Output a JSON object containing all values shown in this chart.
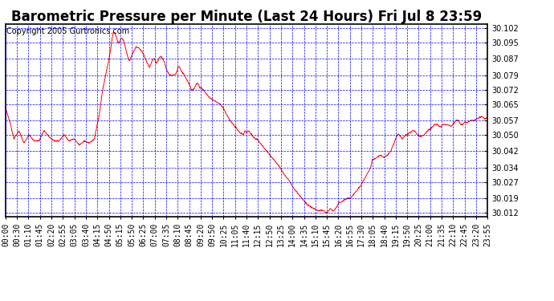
{
  "title": "Barometric Pressure per Minute (Last 24 Hours) Fri Jul 8 23:59",
  "copyright": "Copyright 2005 Gurtronics.com",
  "line_color": "red",
  "background_color": "white",
  "grid_color": "blue",
  "yticks": [
    30.012,
    30.019,
    30.027,
    30.034,
    30.042,
    30.05,
    30.057,
    30.065,
    30.072,
    30.079,
    30.087,
    30.095,
    30.102
  ],
  "ylim": [
    30.01,
    30.104
  ],
  "xtick_labels": [
    "00:00",
    "00:30",
    "01:10",
    "01:45",
    "02:20",
    "02:55",
    "03:05",
    "03:40",
    "04:15",
    "04:50",
    "05:15",
    "05:50",
    "06:25",
    "07:00",
    "07:35",
    "08:10",
    "08:45",
    "09:20",
    "09:50",
    "10:25",
    "11:05",
    "11:40",
    "12:15",
    "12:50",
    "13:25",
    "14:00",
    "14:35",
    "15:10",
    "15:45",
    "16:20",
    "16:55",
    "17:30",
    "18:05",
    "18:40",
    "19:15",
    "19:50",
    "20:25",
    "21:00",
    "21:35",
    "22:10",
    "22:45",
    "23:20",
    "23:55"
  ],
  "waypoints": [
    [
      0,
      30.063
    ],
    [
      15,
      30.055
    ],
    [
      25,
      30.048
    ],
    [
      40,
      30.052
    ],
    [
      55,
      30.046
    ],
    [
      70,
      30.05
    ],
    [
      85,
      30.047
    ],
    [
      100,
      30.047
    ],
    [
      115,
      30.052
    ],
    [
      130,
      30.049
    ],
    [
      145,
      30.047
    ],
    [
      160,
      30.047
    ],
    [
      175,
      30.05
    ],
    [
      190,
      30.047
    ],
    [
      205,
      30.048
    ],
    [
      220,
      30.045
    ],
    [
      235,
      30.047
    ],
    [
      250,
      30.046
    ],
    [
      265,
      30.048
    ],
    [
      280,
      30.06
    ],
    [
      290,
      30.072
    ],
    [
      300,
      30.08
    ],
    [
      310,
      30.088
    ],
    [
      315,
      30.093
    ],
    [
      318,
      30.097
    ],
    [
      322,
      30.1
    ],
    [
      325,
      30.1
    ],
    [
      328,
      30.099
    ],
    [
      332,
      30.097
    ],
    [
      336,
      30.095
    ],
    [
      340,
      30.095
    ],
    [
      344,
      30.097
    ],
    [
      348,
      30.097
    ],
    [
      352,
      30.096
    ],
    [
      356,
      30.094
    ],
    [
      360,
      30.091
    ],
    [
      365,
      30.088
    ],
    [
      370,
      30.086
    ],
    [
      380,
      30.09
    ],
    [
      390,
      30.093
    ],
    [
      400,
      30.092
    ],
    [
      410,
      30.09
    ],
    [
      420,
      30.086
    ],
    [
      430,
      30.083
    ],
    [
      435,
      30.085
    ],
    [
      440,
      30.087
    ],
    [
      445,
      30.087
    ],
    [
      450,
      30.085
    ],
    [
      455,
      30.086
    ],
    [
      460,
      30.088
    ],
    [
      465,
      30.088
    ],
    [
      470,
      30.087
    ],
    [
      475,
      30.085
    ],
    [
      480,
      30.082
    ],
    [
      490,
      30.079
    ],
    [
      500,
      30.079
    ],
    [
      510,
      30.08
    ],
    [
      515,
      30.083
    ],
    [
      520,
      30.083
    ],
    [
      525,
      30.081
    ],
    [
      530,
      30.08
    ],
    [
      535,
      30.079
    ],
    [
      540,
      30.077
    ],
    [
      545,
      30.076
    ],
    [
      550,
      30.074
    ],
    [
      555,
      30.072
    ],
    [
      560,
      30.072
    ],
    [
      565,
      30.073
    ],
    [
      570,
      30.075
    ],
    [
      575,
      30.075
    ],
    [
      580,
      30.073
    ],
    [
      585,
      30.073
    ],
    [
      590,
      30.072
    ],
    [
      600,
      30.07
    ],
    [
      610,
      30.068
    ],
    [
      620,
      30.067
    ],
    [
      630,
      30.066
    ],
    [
      640,
      30.065
    ],
    [
      650,
      30.063
    ],
    [
      660,
      30.06
    ],
    [
      670,
      30.057
    ],
    [
      680,
      30.055
    ],
    [
      690,
      30.053
    ],
    [
      700,
      30.051
    ],
    [
      710,
      30.05
    ],
    [
      715,
      30.052
    ],
    [
      720,
      30.051
    ],
    [
      725,
      30.052
    ],
    [
      730,
      30.051
    ],
    [
      735,
      30.05
    ],
    [
      740,
      30.049
    ],
    [
      745,
      30.048
    ],
    [
      750,
      30.048
    ],
    [
      760,
      30.046
    ],
    [
      770,
      30.044
    ],
    [
      780,
      30.042
    ],
    [
      790,
      30.04
    ],
    [
      800,
      30.038
    ],
    [
      810,
      30.036
    ],
    [
      820,
      30.034
    ],
    [
      830,
      30.031
    ],
    [
      840,
      30.029
    ],
    [
      850,
      30.027
    ],
    [
      860,
      30.024
    ],
    [
      870,
      30.022
    ],
    [
      880,
      30.02
    ],
    [
      890,
      30.018
    ],
    [
      900,
      30.016
    ],
    [
      910,
      30.015
    ],
    [
      920,
      30.014
    ],
    [
      930,
      30.013
    ],
    [
      940,
      30.013
    ],
    [
      950,
      30.013
    ],
    [
      955,
      30.012
    ],
    [
      960,
      30.012
    ],
    [
      965,
      30.013
    ],
    [
      970,
      30.014
    ],
    [
      975,
      30.013
    ],
    [
      980,
      30.013
    ],
    [
      985,
      30.014
    ],
    [
      990,
      30.015
    ],
    [
      995,
      30.017
    ],
    [
      1000,
      30.017
    ],
    [
      1010,
      30.018
    ],
    [
      1020,
      30.019
    ],
    [
      1030,
      30.019
    ],
    [
      1040,
      30.021
    ],
    [
      1050,
      30.023
    ],
    [
      1060,
      30.025
    ],
    [
      1070,
      30.028
    ],
    [
      1080,
      30.031
    ],
    [
      1090,
      30.034
    ],
    [
      1095,
      30.038
    ],
    [
      1100,
      30.038
    ],
    [
      1110,
      30.039
    ],
    [
      1120,
      30.04
    ],
    [
      1130,
      30.039
    ],
    [
      1140,
      30.04
    ],
    [
      1150,
      30.042
    ],
    [
      1155,
      30.044
    ],
    [
      1160,
      30.046
    ],
    [
      1165,
      30.048
    ],
    [
      1170,
      30.05
    ],
    [
      1175,
      30.05
    ],
    [
      1180,
      30.049
    ],
    [
      1185,
      30.048
    ],
    [
      1190,
      30.049
    ],
    [
      1195,
      30.05
    ],
    [
      1200,
      30.05
    ],
    [
      1205,
      30.051
    ],
    [
      1210,
      30.051
    ],
    [
      1215,
      30.052
    ],
    [
      1220,
      30.052
    ],
    [
      1225,
      30.051
    ],
    [
      1230,
      30.05
    ],
    [
      1240,
      30.049
    ],
    [
      1250,
      30.05
    ],
    [
      1260,
      30.052
    ],
    [
      1270,
      30.053
    ],
    [
      1280,
      30.055
    ],
    [
      1290,
      30.055
    ],
    [
      1295,
      30.054
    ],
    [
      1300,
      30.054
    ],
    [
      1305,
      30.055
    ],
    [
      1310,
      30.055
    ],
    [
      1320,
      30.055
    ],
    [
      1330,
      30.054
    ],
    [
      1335,
      30.055
    ],
    [
      1340,
      30.056
    ],
    [
      1345,
      30.057
    ],
    [
      1350,
      30.057
    ],
    [
      1355,
      30.056
    ],
    [
      1360,
      30.055
    ],
    [
      1365,
      30.055
    ],
    [
      1370,
      30.056
    ],
    [
      1380,
      30.056
    ],
    [
      1390,
      30.057
    ],
    [
      1400,
      30.057
    ],
    [
      1410,
      30.058
    ],
    [
      1420,
      30.059
    ],
    [
      1430,
      30.058
    ],
    [
      1439,
      30.058
    ]
  ],
  "title_fontsize": 12,
  "copyright_fontsize": 7,
  "tick_fontsize": 7
}
